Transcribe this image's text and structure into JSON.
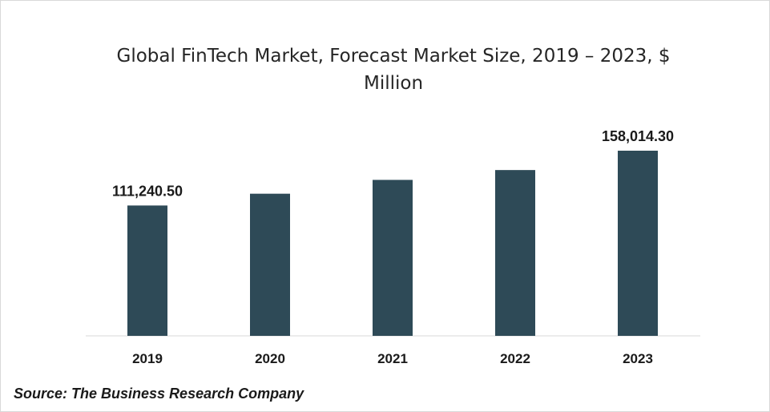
{
  "chart_data": {
    "type": "bar",
    "title": "Global FinTech Market, Forecast Market Size, 2019 – 2023, $ Million",
    "categories": [
      "2019",
      "2020",
      "2021",
      "2022",
      "2023"
    ],
    "values": [
      111240.5,
      121300,
      133100,
      141500,
      158014.3
    ],
    "data_labels": [
      "111,240.50",
      "",
      "",
      "",
      "158,014.30"
    ],
    "xlabel": "",
    "ylabel": "",
    "ylim": [
      0,
      170000
    ],
    "grid": false,
    "legend": "none",
    "bar_color": "#2e4a57"
  },
  "source": "Source: The Business Research Company"
}
